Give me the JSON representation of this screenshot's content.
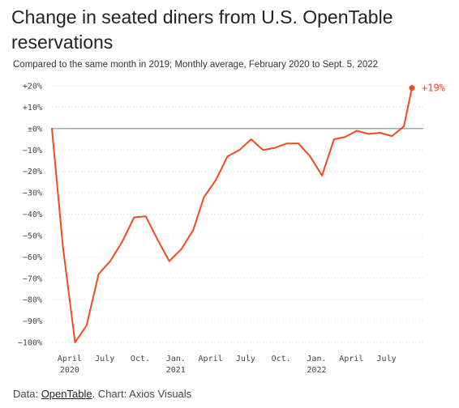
{
  "title": "Change in seated diners from U.S. OpenTable reservations",
  "subtitle": "Compared to the same month in 2019; Monthly average, February 2020 to Sept. 5, 2022",
  "colors": {
    "line": "#ef4b23",
    "zero_line": "#888888",
    "grid": "#dddddd"
  },
  "footer": {
    "prefix": "Data: ",
    "source": "OpenTable",
    "suffix": ". Chart: Axios Visuals"
  },
  "chart_data": {
    "type": "line",
    "title": "Change in seated diners from U.S. OpenTable reservations",
    "ylim": [
      -100,
      20
    ],
    "y_ticks": [
      20,
      10,
      0,
      -10,
      -20,
      -30,
      -40,
      -50,
      -60,
      -70,
      -80,
      -90,
      -100
    ],
    "y_tick_labels": [
      "+20%",
      "+10%",
      "±0%",
      "−10%",
      "−20%",
      "−30%",
      "−40%",
      "−50%",
      "−60%",
      "−70%",
      "−80%",
      "−90%",
      "−100%"
    ],
    "x_ticks": [
      {
        "label": "April",
        "sub": "2020",
        "x": "2020-04-01"
      },
      {
        "label": "July",
        "sub": "",
        "x": "2020-07-01"
      },
      {
        "label": "Oct.",
        "sub": "",
        "x": "2020-10-01"
      },
      {
        "label": "Jan.",
        "sub": "2021",
        "x": "2021-01-01"
      },
      {
        "label": "April",
        "sub": "",
        "x": "2021-04-01"
      },
      {
        "label": "July",
        "sub": "",
        "x": "2021-07-01"
      },
      {
        "label": "Oct.",
        "sub": "",
        "x": "2021-10-01"
      },
      {
        "label": "Jan.",
        "sub": "2022",
        "x": "2022-01-01"
      },
      {
        "label": "April",
        "sub": "",
        "x": "2022-04-01"
      },
      {
        "label": "July",
        "sub": "",
        "x": "2022-07-01"
      }
    ],
    "end_label": "+19%",
    "series": [
      {
        "points": [
          {
            "x": "2020-02-15",
            "y": 0
          },
          {
            "x": "2020-03-15",
            "y": -56
          },
          {
            "x": "2020-04-15",
            "y": -100
          },
          {
            "x": "2020-05-15",
            "y": -92
          },
          {
            "x": "2020-06-15",
            "y": -68
          },
          {
            "x": "2020-07-15",
            "y": -62
          },
          {
            "x": "2020-08-15",
            "y": -53
          },
          {
            "x": "2020-09-15",
            "y": -41.5
          },
          {
            "x": "2020-10-15",
            "y": -41
          },
          {
            "x": "2020-11-15",
            "y": -52
          },
          {
            "x": "2020-12-15",
            "y": -62
          },
          {
            "x": "2021-01-15",
            "y": -56.5
          },
          {
            "x": "2021-02-15",
            "y": -47.5
          },
          {
            "x": "2021-03-15",
            "y": -32
          },
          {
            "x": "2021-04-15",
            "y": -24
          },
          {
            "x": "2021-05-15",
            "y": -13
          },
          {
            "x": "2021-06-15",
            "y": -10
          },
          {
            "x": "2021-07-15",
            "y": -5
          },
          {
            "x": "2021-08-15",
            "y": -10
          },
          {
            "x": "2021-09-15",
            "y": -9
          },
          {
            "x": "2021-10-15",
            "y": -7
          },
          {
            "x": "2021-11-15",
            "y": -7
          },
          {
            "x": "2021-12-15",
            "y": -13
          },
          {
            "x": "2022-01-15",
            "y": -22
          },
          {
            "x": "2022-02-15",
            "y": -5
          },
          {
            "x": "2022-03-15",
            "y": -4
          },
          {
            "x": "2022-04-15",
            "y": -1
          },
          {
            "x": "2022-05-15",
            "y": -2.5
          },
          {
            "x": "2022-06-15",
            "y": -2
          },
          {
            "x": "2022-07-15",
            "y": -3.5
          },
          {
            "x": "2022-08-15",
            "y": 1
          },
          {
            "x": "2022-09-05",
            "y": 19
          }
        ]
      }
    ]
  }
}
